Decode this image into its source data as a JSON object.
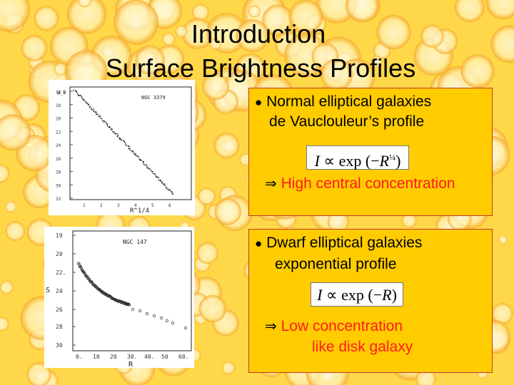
{
  "title": {
    "line1": "Introduction",
    "line2": "Surface Brightness Profiles"
  },
  "panel_normal": {
    "bullet": "●",
    "heading": "Normal elliptical galaxies",
    "subheading": "de Vauclouleur’s profile",
    "formula": "I ∝ exp(−R^(1/4))",
    "arrow": "⇒",
    "conclusion": "High central concentration"
  },
  "panel_dwarf": {
    "bullet": "●",
    "heading": "Dwarf elliptical galaxies",
    "subheading": "exponential profile",
    "formula": "I ∝ exp(−R)",
    "arrow": "⇒",
    "conclusion_line1": "Low concentration",
    "conclusion_line2": "like disk galaxy"
  },
  "plot_top": {
    "galaxy_label": "NGC 3379",
    "xlabel": "R^1/4",
    "ylabel": "μ_B",
    "x_ticks": [
      "1",
      "2",
      "3",
      "4",
      "5",
      "6"
    ],
    "y_ticks": [
      "16",
      "18",
      "20",
      "22",
      "24",
      "26",
      "28",
      "30",
      "32"
    ]
  },
  "plot_bottom": {
    "galaxy_label": "NGC 147",
    "xlabel": "R",
    "ylabel": "S",
    "x_ticks": [
      "0.",
      "10",
      "20",
      "30.",
      "40.",
      "50",
      "60."
    ],
    "y_ticks": [
      "19",
      "20",
      "22.",
      "24",
      "26",
      "28",
      "30"
    ]
  },
  "colors": {
    "panel_fill": "#ffcc00",
    "panel_border": "#c0392b",
    "conclusion_text": "#ff1a1a",
    "background_base": "#ffd84a"
  }
}
